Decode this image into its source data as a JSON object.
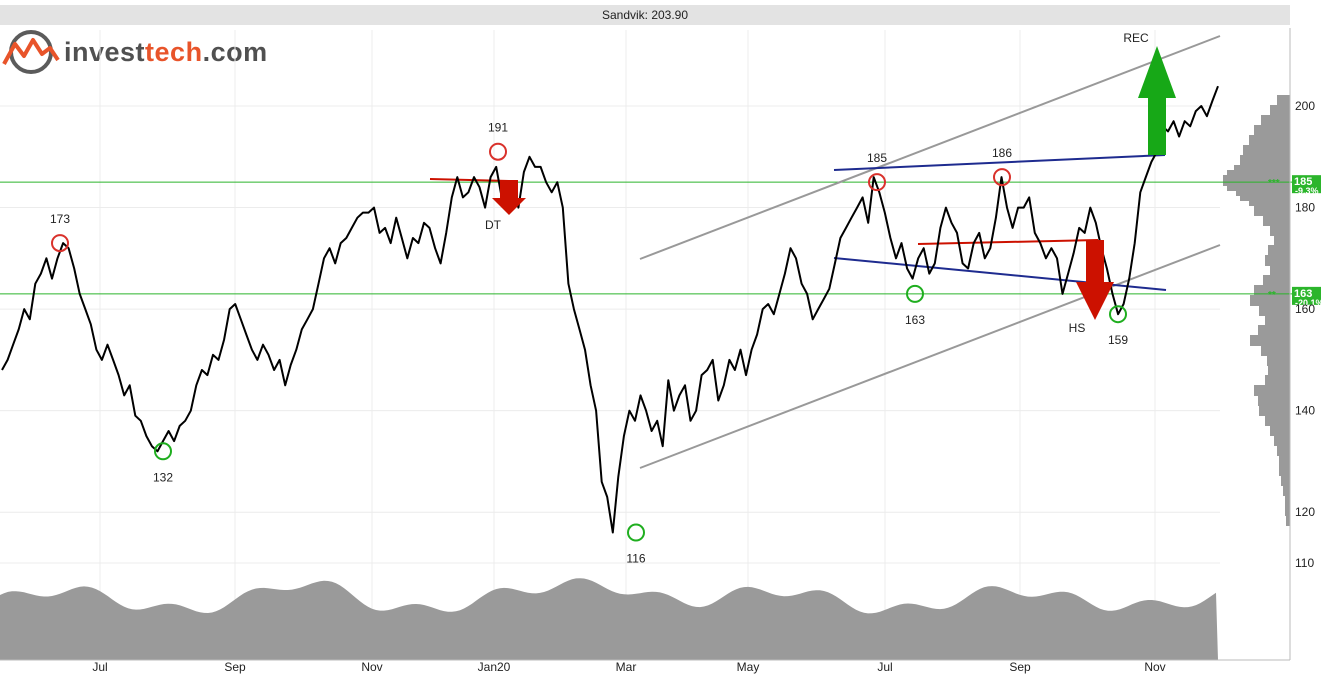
{
  "header": {
    "title": "Sandvik: 203.90"
  },
  "logo": {
    "name": "invest",
    "accent": "tech",
    "suffix": ".com"
  },
  "chart_data": {
    "type": "line",
    "title": "Sandvik: 203.90",
    "x_labels": [
      "Jul",
      "Sep",
      "Nov",
      "Jan20",
      "Mar",
      "May",
      "Jul",
      "Sep",
      "Nov"
    ],
    "y_ticks": [
      110,
      120,
      140,
      160,
      180,
      200
    ],
    "ylim": [
      110,
      210
    ],
    "last_price": 203.9,
    "price_series": [
      148,
      150,
      153,
      156,
      160,
      158,
      165,
      167,
      170,
      166,
      170,
      173,
      172,
      168,
      163,
      160,
      157,
      152,
      150,
      153,
      150,
      147,
      143,
      145,
      139,
      138,
      135,
      133,
      132,
      134,
      136,
      134,
      137,
      138,
      140,
      145,
      148,
      147,
      151,
      150,
      154,
      160,
      161,
      158,
      155,
      152,
      150,
      153,
      151,
      148,
      150,
      145,
      149,
      152,
      156,
      158,
      160,
      165,
      170,
      172,
      169,
      173,
      174,
      176,
      178,
      179,
      179,
      180,
      175,
      176,
      173,
      178,
      174,
      170,
      174,
      173,
      177,
      176,
      172,
      169,
      175,
      182,
      186,
      182,
      183,
      186,
      184,
      180,
      186,
      188,
      182,
      185,
      184,
      180,
      187,
      190,
      188,
      188,
      185,
      183,
      185,
      180,
      165,
      160,
      156,
      152,
      145,
      140,
      126,
      123,
      116,
      127,
      135,
      140,
      138,
      143,
      140,
      136,
      138,
      133,
      146,
      140,
      143,
      145,
      138,
      140,
      147,
      148,
      150,
      142,
      145,
      150,
      148,
      152,
      147,
      152,
      155,
      160,
      161,
      159,
      163,
      167,
      172,
      170,
      165,
      163,
      158,
      160,
      162,
      164,
      169,
      174,
      176,
      178,
      180,
      182,
      177,
      186,
      183,
      179,
      174,
      170,
      173,
      168,
      166,
      170,
      172,
      167,
      169,
      176,
      180,
      177,
      175,
      169,
      168,
      173,
      175,
      170,
      172,
      178,
      186,
      180,
      176,
      180,
      180,
      182,
      175,
      173,
      170,
      172,
      170,
      163,
      167,
      171,
      176,
      175,
      180,
      177,
      172,
      168,
      163,
      159,
      161,
      166,
      173,
      183,
      186,
      189,
      191,
      196,
      195,
      197,
      194,
      197,
      196,
      199,
      200,
      198,
      201,
      203.9
    ],
    "extremes": [
      {
        "label": "173",
        "kind": "top",
        "value": 173,
        "month": "Jun"
      },
      {
        "label": "132",
        "kind": "bottom",
        "value": 132,
        "month": "Aug"
      },
      {
        "label": "191",
        "kind": "top",
        "value": 191,
        "month": "Jan20"
      },
      {
        "label": "116",
        "kind": "bottom",
        "value": 116,
        "month": "Mar"
      },
      {
        "label": "185",
        "kind": "top",
        "value": 185,
        "month": "Jul"
      },
      {
        "label": "163",
        "kind": "bottom",
        "value": 163,
        "month": "Jul"
      },
      {
        "label": "186",
        "kind": "top",
        "value": 186,
        "month": "Sep"
      },
      {
        "label": "159",
        "kind": "bottom",
        "value": 159,
        "month": "Oct"
      }
    ],
    "patterns": [
      {
        "label": "DT",
        "signal": "sell"
      },
      {
        "label": "HS",
        "signal": "sell"
      },
      {
        "label": "REC",
        "signal": "buy"
      }
    ],
    "levels": [
      {
        "value": 185,
        "label": "185",
        "pct": "-9.3%",
        "marker": "***"
      },
      {
        "value": 163,
        "label": "163",
        "pct": "-20.1%",
        "marker": "**"
      }
    ],
    "colors": {
      "price": "#000000",
      "level": "#2bb52b",
      "channel": "#999999",
      "trendline": "#1e2b8f",
      "sell": "#cc1100",
      "buy": "#17a817",
      "volume": "#9a9a9a",
      "top_circle": "#d9312b",
      "bottom_circle": "#1fae1f"
    },
    "grid": true
  }
}
